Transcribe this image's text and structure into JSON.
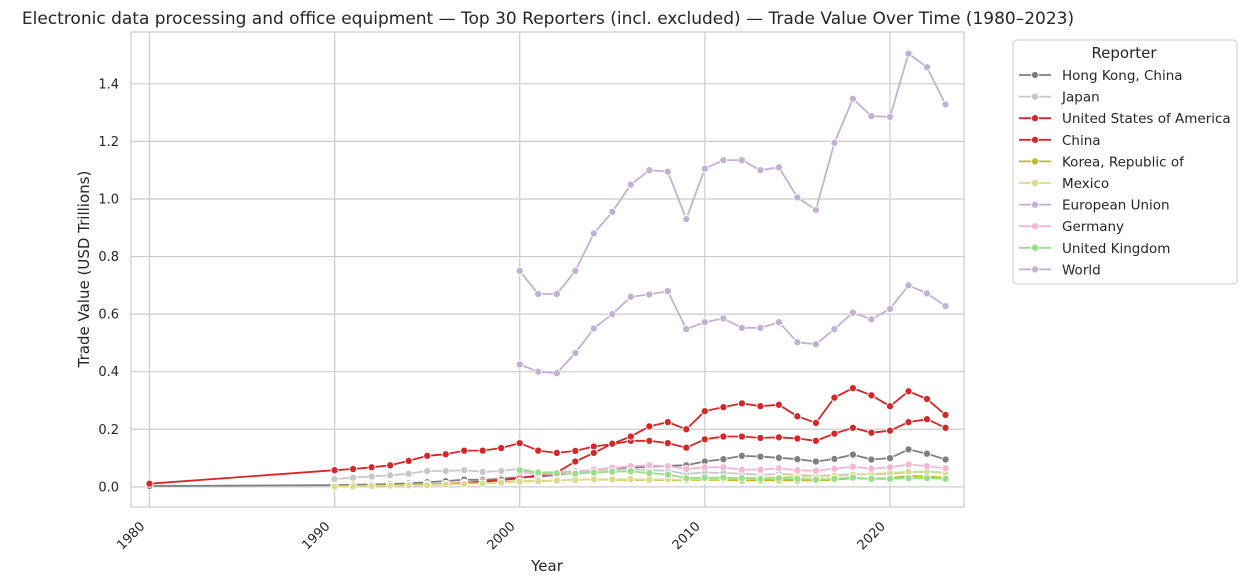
{
  "chart_data": {
    "type": "line",
    "title": "Electronic data processing and office equipment — Top 30 Reporters (incl. excluded) — Trade Value Over Time (1980–2023)",
    "xlabel": "Year",
    "ylabel": "Trade Value (USD Trillions)",
    "xlim": [
      1979,
      2024
    ],
    "ylim": [
      -0.07,
      1.58
    ],
    "xticks": [
      1980,
      1990,
      2000,
      2010,
      2020
    ],
    "yticks": [
      "0.0",
      "0.2",
      "0.4",
      "0.6",
      "0.8",
      "1.0",
      "1.2",
      "1.4"
    ],
    "grid": true,
    "legend": {
      "title": "Reporter",
      "placement": "outside right"
    },
    "series": [
      {
        "name": "Hong Kong, China",
        "color": "#7f7f7f",
        "x": [
          1980,
          1990,
          1991,
          1992,
          1993,
          1994,
          1995,
          1996,
          1997,
          1998,
          1999,
          2000,
          2001,
          2002,
          2003,
          2004,
          2005,
          2006,
          2007,
          2008,
          2009,
          2010,
          2011,
          2012,
          2013,
          2014,
          2015,
          2016,
          2017,
          2018,
          2019,
          2020,
          2021,
          2022,
          2023
        ],
        "y": [
          0.003,
          0.006,
          0.007,
          0.008,
          0.01,
          0.012,
          0.016,
          0.02,
          0.025,
          0.024,
          0.028,
          0.034,
          0.035,
          0.042,
          0.05,
          0.058,
          0.063,
          0.067,
          0.07,
          0.073,
          0.075,
          0.088,
          0.096,
          0.108,
          0.105,
          0.101,
          0.096,
          0.088,
          0.097,
          0.112,
          0.095,
          0.1,
          0.13,
          0.115,
          0.095
        ]
      },
      {
        "name": "Japan",
        "color": "#c7c7c7",
        "x": [
          1990,
          1991,
          1992,
          1993,
          1994,
          1995,
          1996,
          1997,
          1998,
          1999,
          2000,
          2001,
          2002,
          2003,
          2004,
          2005,
          2006,
          2007,
          2008,
          2009,
          2010,
          2011,
          2012,
          2013,
          2014,
          2015,
          2016,
          2017,
          2018,
          2019,
          2020,
          2021,
          2022,
          2023
        ],
        "y": [
          0.027,
          0.032,
          0.036,
          0.04,
          0.046,
          0.055,
          0.055,
          0.058,
          0.052,
          0.055,
          0.063,
          0.05,
          0.052,
          0.055,
          0.058,
          0.06,
          0.062,
          0.058,
          0.056,
          0.045,
          0.05,
          0.048,
          0.046,
          0.042,
          0.045,
          0.042,
          0.038,
          0.04,
          0.045,
          0.043,
          0.045,
          0.05,
          0.052,
          0.048
        ]
      },
      {
        "name": "United States of America",
        "color": "#d62728",
        "x": [
          1980,
          1990,
          1991,
          1992,
          1993,
          1994,
          1995,
          1996,
          1997,
          1998,
          1999,
          2000,
          2001,
          2002,
          2003,
          2004,
          2005,
          2006,
          2007,
          2008,
          2009,
          2010,
          2011,
          2012,
          2013,
          2014,
          2015,
          2016,
          2017,
          2018,
          2019,
          2020,
          2021,
          2022,
          2023
        ],
        "y": [
          0.011,
          0.058,
          0.062,
          0.068,
          0.075,
          0.09,
          0.108,
          0.113,
          0.126,
          0.126,
          0.135,
          0.152,
          0.126,
          0.118,
          0.125,
          0.14,
          0.148,
          0.16,
          0.16,
          0.152,
          0.136,
          0.165,
          0.175,
          0.175,
          0.17,
          0.172,
          0.168,
          0.16,
          0.185,
          0.205,
          0.188,
          0.195,
          0.225,
          0.235,
          0.205
        ]
      },
      {
        "name": "China",
        "color": "#d62728",
        "x": [
          1992,
          1993,
          1994,
          1995,
          1996,
          1997,
          1998,
          1999,
          2000,
          2001,
          2002,
          2003,
          2004,
          2005,
          2006,
          2007,
          2008,
          2009,
          2010,
          2011,
          2012,
          2013,
          2014,
          2015,
          2016,
          2017,
          2018,
          2019,
          2020,
          2021,
          2022,
          2023
        ],
        "y": [
          0.003,
          0.004,
          0.006,
          0.008,
          0.01,
          0.014,
          0.018,
          0.023,
          0.03,
          0.04,
          0.05,
          0.088,
          0.118,
          0.15,
          0.175,
          0.21,
          0.225,
          0.2,
          0.263,
          0.277,
          0.29,
          0.28,
          0.285,
          0.245,
          0.222,
          0.31,
          0.343,
          0.318,
          0.28,
          0.332,
          0.305,
          0.25
        ]
      },
      {
        "name": "Korea, Republic of",
        "color": "#bcbd22",
        "x": [
          1990,
          1991,
          1992,
          1993,
          1994,
          1995,
          1996,
          1997,
          1998,
          1999,
          2000,
          2001,
          2002,
          2003,
          2004,
          2005,
          2006,
          2007,
          2008,
          2009,
          2010,
          2011,
          2012,
          2013,
          2014,
          2015,
          2016,
          2017,
          2018,
          2019,
          2020,
          2021,
          2022,
          2023
        ],
        "y": [
          0.002,
          0.003,
          0.004,
          0.005,
          0.007,
          0.009,
          0.01,
          0.012,
          0.012,
          0.016,
          0.02,
          0.02,
          0.022,
          0.024,
          0.026,
          0.025,
          0.024,
          0.024,
          0.023,
          0.022,
          0.025,
          0.024,
          0.022,
          0.022,
          0.023,
          0.022,
          0.022,
          0.025,
          0.03,
          0.028,
          0.03,
          0.038,
          0.036,
          0.032
        ]
      },
      {
        "name": "Mexico",
        "color": "#dbdb8d",
        "x": [
          1990,
          1991,
          1992,
          1993,
          1994,
          1995,
          1996,
          1997,
          1998,
          1999,
          2000,
          2001,
          2002,
          2003,
          2004,
          2005,
          2006,
          2007,
          2008,
          2009,
          2010,
          2011,
          2012,
          2013,
          2014,
          2015,
          2016,
          2017,
          2018,
          2019,
          2020,
          2021,
          2022,
          2023
        ],
        "y": [
          0.001,
          0.002,
          0.003,
          0.004,
          0.005,
          0.006,
          0.008,
          0.01,
          0.012,
          0.015,
          0.018,
          0.02,
          0.022,
          0.024,
          0.026,
          0.026,
          0.027,
          0.025,
          0.026,
          0.023,
          0.027,
          0.028,
          0.03,
          0.032,
          0.034,
          0.035,
          0.036,
          0.038,
          0.042,
          0.045,
          0.048,
          0.052,
          0.054,
          0.05
        ]
      },
      {
        "name": "European Union",
        "color": "#c5b0d5",
        "x": [
          2000,
          2001,
          2002,
          2003,
          2004,
          2005,
          2006,
          2007,
          2008,
          2009,
          2010,
          2011,
          2012,
          2013,
          2014,
          2015,
          2016,
          2017,
          2018,
          2019,
          2020,
          2021,
          2022,
          2023
        ],
        "y": [
          0.425,
          0.4,
          0.395,
          0.465,
          0.55,
          0.6,
          0.66,
          0.668,
          0.68,
          0.548,
          0.572,
          0.585,
          0.552,
          0.552,
          0.572,
          0.502,
          0.495,
          0.548,
          0.605,
          0.582,
          0.618,
          0.7,
          0.672,
          0.628
        ]
      },
      {
        "name": "Germany",
        "color": "#f7b6d2",
        "x": [
          2000,
          2001,
          2002,
          2003,
          2004,
          2005,
          2006,
          2007,
          2008,
          2009,
          2010,
          2011,
          2012,
          2013,
          2014,
          2015,
          2016,
          2017,
          2018,
          2019,
          2020,
          2021,
          2022,
          2023
        ],
        "y": [
          0.05,
          0.045,
          0.045,
          0.048,
          0.06,
          0.066,
          0.072,
          0.075,
          0.072,
          0.062,
          0.068,
          0.068,
          0.06,
          0.06,
          0.064,
          0.058,
          0.056,
          0.063,
          0.07,
          0.063,
          0.068,
          0.078,
          0.072,
          0.064
        ]
      },
      {
        "name": "United Kingdom",
        "color": "#98df8a",
        "x": [
          2000,
          2001,
          2002,
          2003,
          2004,
          2005,
          2006,
          2007,
          2008,
          2009,
          2010,
          2011,
          2012,
          2013,
          2014,
          2015,
          2016,
          2017,
          2018,
          2019,
          2020,
          2021,
          2022,
          2023
        ],
        "y": [
          0.058,
          0.05,
          0.047,
          0.046,
          0.05,
          0.053,
          0.054,
          0.048,
          0.043,
          0.03,
          0.032,
          0.032,
          0.03,
          0.028,
          0.03,
          0.028,
          0.025,
          0.028,
          0.032,
          0.028,
          0.028,
          0.03,
          0.03,
          0.028
        ]
      },
      {
        "name": "World",
        "color": "#c5b0d5",
        "x": [
          2000,
          2001,
          2002,
          2003,
          2004,
          2005,
          2006,
          2007,
          2008,
          2009,
          2010,
          2011,
          2012,
          2013,
          2014,
          2015,
          2016,
          2017,
          2018,
          2019,
          2020,
          2021,
          2022,
          2023
        ],
        "y": [
          0.75,
          0.67,
          0.67,
          0.75,
          0.88,
          0.955,
          1.05,
          1.1,
          1.095,
          0.93,
          1.105,
          1.135,
          1.135,
          1.1,
          1.11,
          1.005,
          0.962,
          1.195,
          1.348,
          1.288,
          1.285,
          1.505,
          1.458,
          1.328
        ]
      }
    ]
  }
}
